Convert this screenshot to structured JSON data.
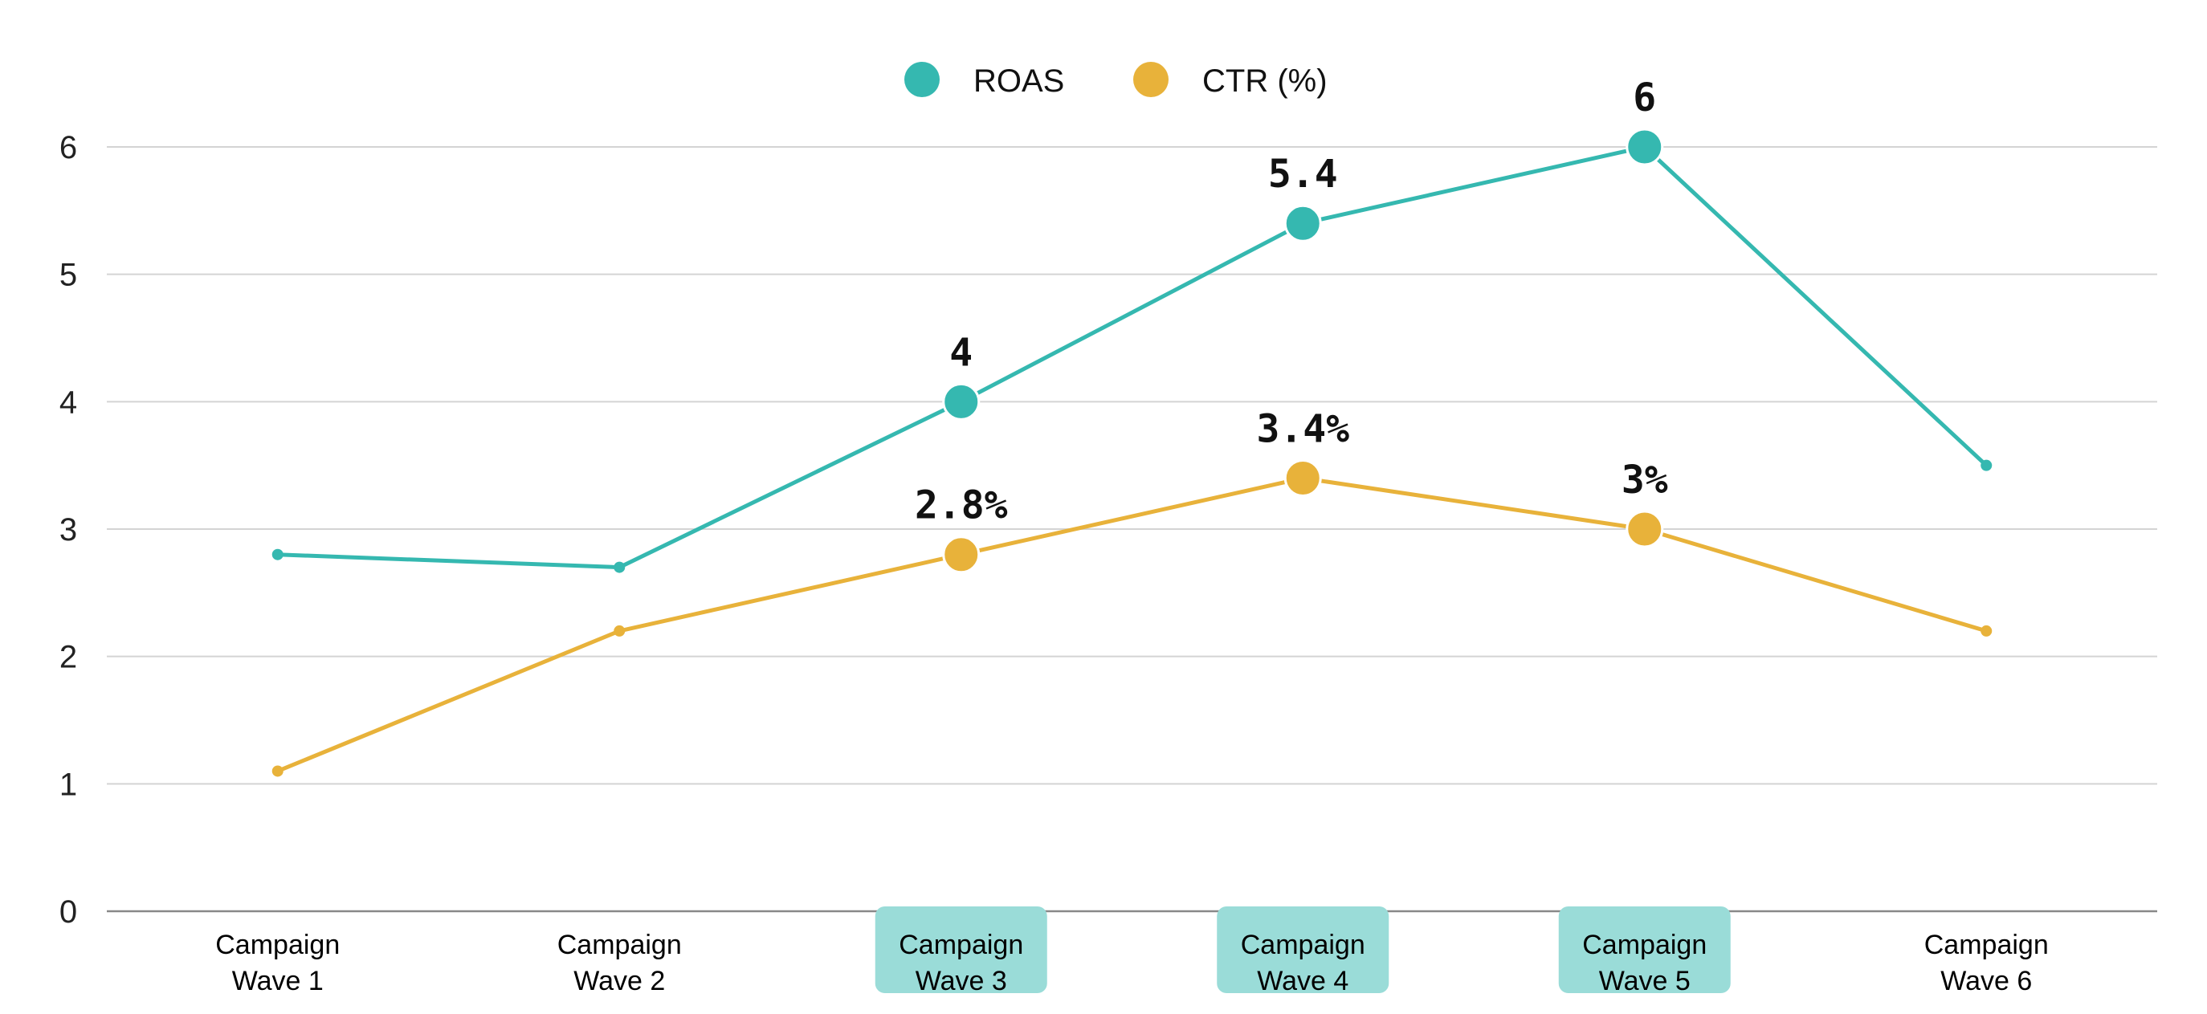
{
  "chart_data": {
    "type": "line",
    "title": "",
    "xlabel": "",
    "ylabel": "",
    "ylim": [
      0,
      6
    ],
    "yticks": [
      "0",
      "1",
      "2",
      "3",
      "4",
      "5",
      "6"
    ],
    "grid": true,
    "legend_position": "top-center",
    "categories": [
      [
        "Campaign",
        "Wave 1"
      ],
      [
        "Campaign",
        "Wave 2"
      ],
      [
        "Campaign",
        "Wave 3"
      ],
      [
        "Campaign",
        "Wave 4"
      ],
      [
        "Campaign",
        "Wave 5"
      ],
      [
        "Campaign",
        "Wave 6"
      ]
    ],
    "highlighted_categories": [
      2,
      3,
      4
    ],
    "highlight_color": "#9adcd8",
    "series": [
      {
        "name": "ROAS",
        "color": "#35b8b0",
        "values": [
          2.8,
          2.7,
          4,
          5.4,
          6,
          3.5
        ],
        "labels": [
          null,
          null,
          "4",
          "5.4",
          "6",
          null
        ]
      },
      {
        "name": "CTR (%)",
        "color": "#e8b23a",
        "values": [
          1.1,
          2.2,
          2.8,
          3.4,
          3,
          2.2
        ],
        "labels": [
          null,
          null,
          "2.8%",
          "3.4%",
          "3%",
          null
        ]
      }
    ]
  }
}
